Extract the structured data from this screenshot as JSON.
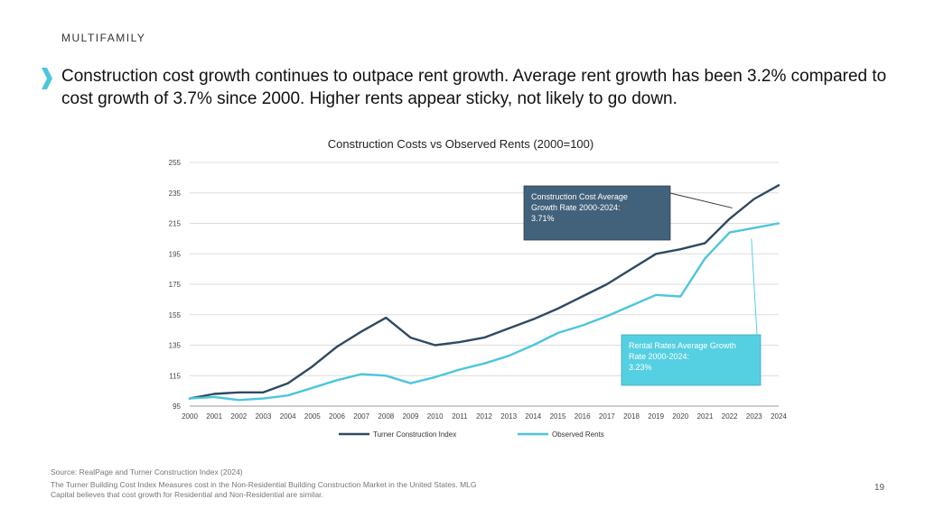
{
  "slide": {
    "section_label": "MULTIFAMILY",
    "headline": "Construction cost growth continues to outpace rent growth. Average rent growth has been 3.2% compared to cost growth of 3.7% since 2000. Higher rents appear sticky, not likely to go down.",
    "source": "Source: RealPage and Turner Construction Index (2024)",
    "note": "The Turner Building Cost Index Measures cost in the Non-Residential Building Construction Market in the United States. MLG Capital believes that cost growth for Residential and Non-Residential are similar.",
    "page_number": "19",
    "accent_color": "#4cc6dc"
  },
  "chart_data": {
    "type": "line",
    "title": "Construction Costs vs Observed Rents (2000=100)",
    "xlabel": "",
    "ylabel": "",
    "ylim": [
      95,
      255
    ],
    "yticks": [
      95,
      115,
      135,
      155,
      175,
      195,
      215,
      235,
      255
    ],
    "categories": [
      "2000",
      "2001",
      "2002",
      "2003",
      "2004",
      "2005",
      "2006",
      "2007",
      "2008",
      "2009",
      "2010",
      "2011",
      "2012",
      "2013",
      "2014",
      "2015",
      "2016",
      "2017",
      "2018",
      "2019",
      "2020",
      "2021",
      "2022",
      "2023",
      "2024"
    ],
    "series": [
      {
        "name": "Turner Construction Index",
        "color": "#2e4a62",
        "values": [
          100,
          103,
          104,
          104,
          110,
          121,
          134,
          144,
          153,
          140,
          135,
          137,
          140,
          146,
          152,
          159,
          167,
          175,
          185,
          195,
          198,
          202,
          218,
          231,
          240
        ]
      },
      {
        "name": "Observed Rents",
        "color": "#4cc6dc",
        "values": [
          100,
          101,
          99,
          100,
          102,
          107,
          112,
          116,
          115,
          110,
          114,
          119,
          123,
          128,
          135,
          143,
          148,
          154,
          161,
          168,
          167,
          192,
          209,
          212,
          215
        ]
      }
    ],
    "annotations": [
      {
        "text": "Construction Cost Average Growth Rate  2000-2024: 3.71%",
        "lines": [
          "Construction Cost Average",
          "Growth Rate  2000-2024:",
          "3.71%"
        ],
        "fill": "#42627c",
        "text_color": "#ffffff"
      },
      {
        "text": "Rental Rates Average Growth Rate 2000-2024: 3.23%",
        "lines": [
          "Rental Rates Average Growth",
          "Rate 2000-2024:",
          "3.23%"
        ],
        "fill": "#55d0e2",
        "text_color": "#ffffff"
      }
    ],
    "grid": true,
    "legend": "bottom"
  }
}
